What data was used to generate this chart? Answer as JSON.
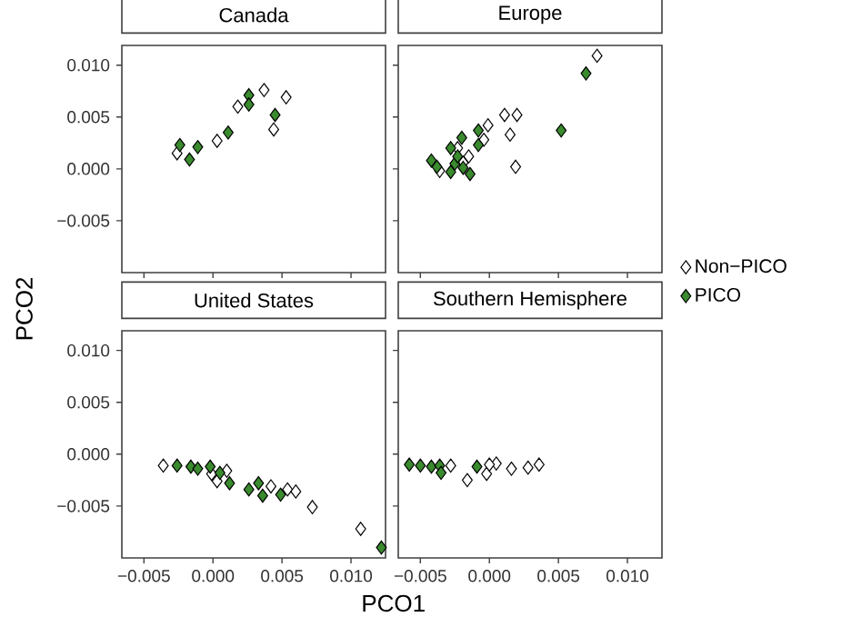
{
  "chart_data": [
    {
      "type": "scatter",
      "title": "Canada",
      "ylabel": "PCO2",
      "xlim": [
        -0.0066,
        0.0125
      ],
      "ylim": [
        -0.01,
        0.0119
      ],
      "xticks": [
        {
          "value": -0.005,
          "label": null
        },
        {
          "value": 0,
          "label": null
        },
        {
          "value": 0.005,
          "label": null
        },
        {
          "value": 0.01,
          "label": null
        }
      ],
      "yticks": [
        {
          "value": -0.005,
          "label": "−0.005"
        },
        {
          "value": 0,
          "label": "0.000"
        },
        {
          "value": 0.005,
          "label": "0.005"
        },
        {
          "value": 0.01,
          "label": "0.010"
        }
      ],
      "tick_labels": "y",
      "marker": "diamond",
      "grid": false,
      "series": [
        {
          "color": "#ffffff",
          "x": [
            -0.0026,
            0.0003,
            0.0018,
            0.0037,
            0.0053,
            0.0044
          ],
          "values": [
            0.0015,
            0.0027,
            0.006,
            0.0076,
            0.0069,
            0.0038
          ]
        },
        {
          "color": "#3a8a2e",
          "x": [
            -0.0024,
            -0.0017,
            -0.0011,
            0.0011,
            0.0026,
            0.0026,
            0.0045
          ],
          "values": [
            0.0023,
            0.0009,
            0.0021,
            0.0035,
            0.0071,
            0.0062,
            0.0052
          ]
        }
      ]
    },
    {
      "type": "scatter",
      "title": "Europe",
      "xlim": [
        -0.0066,
        0.0125
      ],
      "ylim": [
        -0.01,
        0.0119
      ],
      "xticks": [
        {
          "value": -0.005,
          "label": null
        },
        {
          "value": 0,
          "label": null
        },
        {
          "value": 0.005,
          "label": null
        },
        {
          "value": 0.01,
          "label": null
        }
      ],
      "yticks": [
        {
          "value": -0.005,
          "label": null
        },
        {
          "value": 0,
          "label": null
        },
        {
          "value": 0.005,
          "label": null
        },
        {
          "value": 0.01,
          "label": null
        }
      ],
      "tick_labels": false,
      "marker": "diamond",
      "grid": false,
      "legend": "right",
      "series": [
        {
          "name": "Non−PICO",
          "color": "#ffffff",
          "x": [
            0.0078,
            0.0011,
            0.002,
            0.0015,
            -0.0001,
            -0.0004,
            0.0019,
            -0.0015,
            -0.0023,
            -0.0036,
            -0.0019
          ],
          "values": [
            0.0109,
            0.0052,
            0.0052,
            0.0033,
            0.0042,
            0.0028,
            0.0002,
            0.0012,
            0.002,
            -0.0002,
            0.0006
          ]
        },
        {
          "name": "PICO",
          "color": "#3a8a2e",
          "x": [
            0.007,
            0.0052,
            -0.0008,
            -0.002,
            -0.0008,
            -0.0028,
            -0.0042,
            -0.0038,
            -0.0025,
            -0.0028,
            -0.0019,
            -0.0014,
            -0.0023
          ],
          "values": [
            0.0092,
            0.0037,
            0.0037,
            0.003,
            0.0023,
            0.002,
            0.0008,
            0.0002,
            0.0005,
            -0.0003,
            0.0001,
            -0.0005,
            0.0012
          ]
        }
      ]
    },
    {
      "type": "scatter",
      "title": "United States",
      "xlabel": "PCO1",
      "xlim": [
        -0.0066,
        0.0125
      ],
      "ylim": [
        -0.01,
        0.0119
      ],
      "xticks": [
        {
          "value": -0.005,
          "label": "−0.005"
        },
        {
          "value": 0,
          "label": "0.000"
        },
        {
          "value": 0.005,
          "label": "0.005"
        },
        {
          "value": 0.01,
          "label": "0.010"
        }
      ],
      "yticks": [
        {
          "value": -0.005,
          "label": "−0.005"
        },
        {
          "value": 0,
          "label": "0.000"
        },
        {
          "value": 0.005,
          "label": "0.005"
        },
        {
          "value": 0.01,
          "label": "0.010"
        }
      ],
      "marker": "diamond",
      "grid": false,
      "series": [
        {
          "color": "#ffffff",
          "x": [
            -0.0036,
            0.0003,
            0.001,
            0.0042,
            0.0054,
            0.006,
            0.0072,
            0.0107,
            -0.0001
          ],
          "values": [
            -0.0011,
            -0.0026,
            -0.0016,
            -0.0031,
            -0.0034,
            -0.0036,
            -0.0051,
            -0.0072,
            -0.0019
          ]
        },
        {
          "color": "#3a8a2e",
          "x": [
            -0.0026,
            -0.0016,
            -0.0011,
            -0.0002,
            0.0005,
            0.0012,
            0.0026,
            0.0033,
            0.0036,
            0.0049,
            0.0122
          ],
          "values": [
            -0.0011,
            -0.0012,
            -0.0014,
            -0.0012,
            -0.0018,
            -0.0028,
            -0.0034,
            -0.0028,
            -0.004,
            -0.0039,
            -0.009
          ]
        }
      ]
    },
    {
      "type": "scatter",
      "title": "Southern Hemisphere",
      "xlim": [
        -0.0066,
        0.0125
      ],
      "ylim": [
        -0.01,
        0.0119
      ],
      "xticks": [
        {
          "value": -0.005,
          "label": "−0.005"
        },
        {
          "value": 0,
          "label": "0.000"
        },
        {
          "value": 0.005,
          "label": "0.005"
        },
        {
          "value": 0.01,
          "label": "0.010"
        }
      ],
      "yticks": [
        {
          "value": -0.005,
          "label": null
        },
        {
          "value": 0,
          "label": null
        },
        {
          "value": 0.005,
          "label": null
        },
        {
          "value": 0.01,
          "label": null
        }
      ],
      "tick_labels": "x",
      "marker": "diamond",
      "grid": false,
      "series": [
        {
          "color": "#ffffff",
          "x": [
            -0.0028,
            -0.0016,
            -0.0002,
            0.0005,
            0.0016,
            0.0028,
            0.0036,
            0.0
          ],
          "values": [
            -0.0011,
            -0.0025,
            -0.0019,
            -0.0009,
            -0.0014,
            -0.0013,
            -0.001,
            -0.001
          ]
        },
        {
          "color": "#3a8a2e",
          "x": [
            -0.0058,
            -0.005,
            -0.0042,
            -0.0036,
            -0.0035,
            -0.0009
          ],
          "values": [
            -0.001,
            -0.0011,
            -0.0012,
            -0.0011,
            -0.0018,
            -0.0012
          ]
        }
      ]
    }
  ]
}
